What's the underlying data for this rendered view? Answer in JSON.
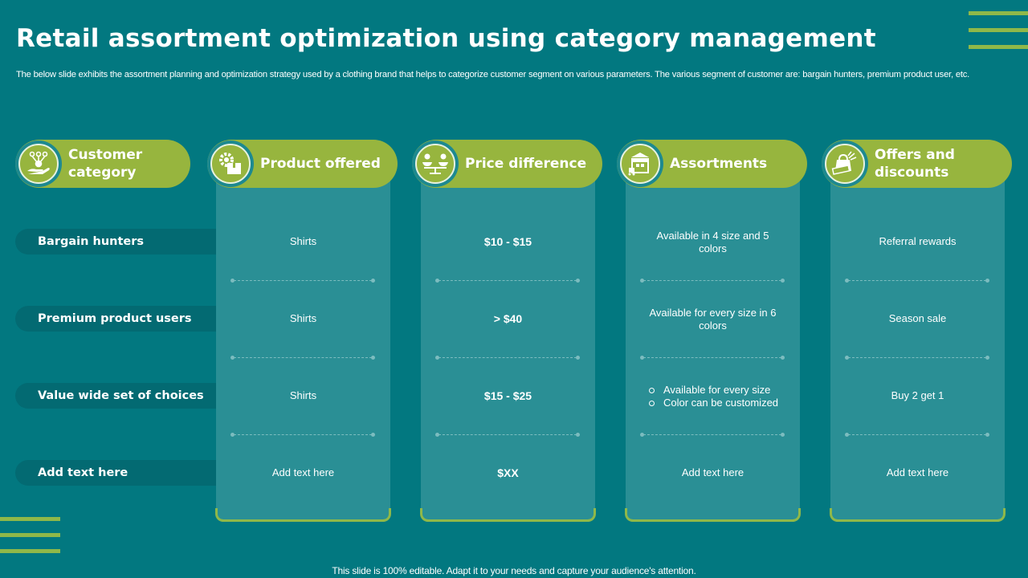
{
  "slide": {
    "title": "Retail assortment optimization using category management",
    "subtitle": "The below slide exhibits the assortment planning and optimization strategy used by a clothing brand that helps to categorize customer segment on various parameters. The various segment of customer are: bargain hunters, premium product user, etc.",
    "footer": "This slide is 100% editable. Adapt it to your needs and capture your audience's attention."
  },
  "colors": {
    "background": "#027880",
    "accent_green": "#97b53e",
    "panel": "#2a8f95",
    "row_pill": "#036a72",
    "text": "#ffffff"
  },
  "headers": [
    {
      "label": "Customer category",
      "line1": "Customer",
      "line2": "category",
      "icon": "hand-network-icon"
    },
    {
      "label": "Product offered",
      "line1": "Product offered",
      "line2": "",
      "icon": "gear-box-icon"
    },
    {
      "label": "Price difference",
      "line1": "Price difference",
      "line2": "",
      "icon": "balance-scale-icon"
    },
    {
      "label": "Assortments",
      "line1": "Assortments",
      "line2": "",
      "icon": "warehouse-icon"
    },
    {
      "label": "Offers and discounts",
      "line1": "Offers and",
      "line2": "discounts",
      "icon": "shopping-bag-discount-icon"
    }
  ],
  "rows": [
    {
      "category": "Bargain hunters",
      "product": "Shirts",
      "price": "$10 - $15",
      "assortment": {
        "line1": "Available  in 4 size and 5",
        "line2": "colors"
      },
      "offer": "Referral  rewards"
    },
    {
      "category": "Premium product users",
      "product": "Shirts",
      "price": "> $40",
      "assortment": {
        "line1": "Available  for  every  size in 6",
        "line2": "colors"
      },
      "offer": "Season sale"
    },
    {
      "category": "Value wide set of choices",
      "product": "Shirts",
      "price": "$15 - $25",
      "assortment": {
        "bullets": [
          "Available  for  every  size",
          "Color  can  be  customized"
        ]
      },
      "offer": "Buy 2 get 1"
    },
    {
      "category": "Add text here",
      "product": "Add text here",
      "price": "$XX",
      "assortment": {
        "line1": "Add text here",
        "line2": ""
      },
      "offer": "Add text here"
    }
  ]
}
